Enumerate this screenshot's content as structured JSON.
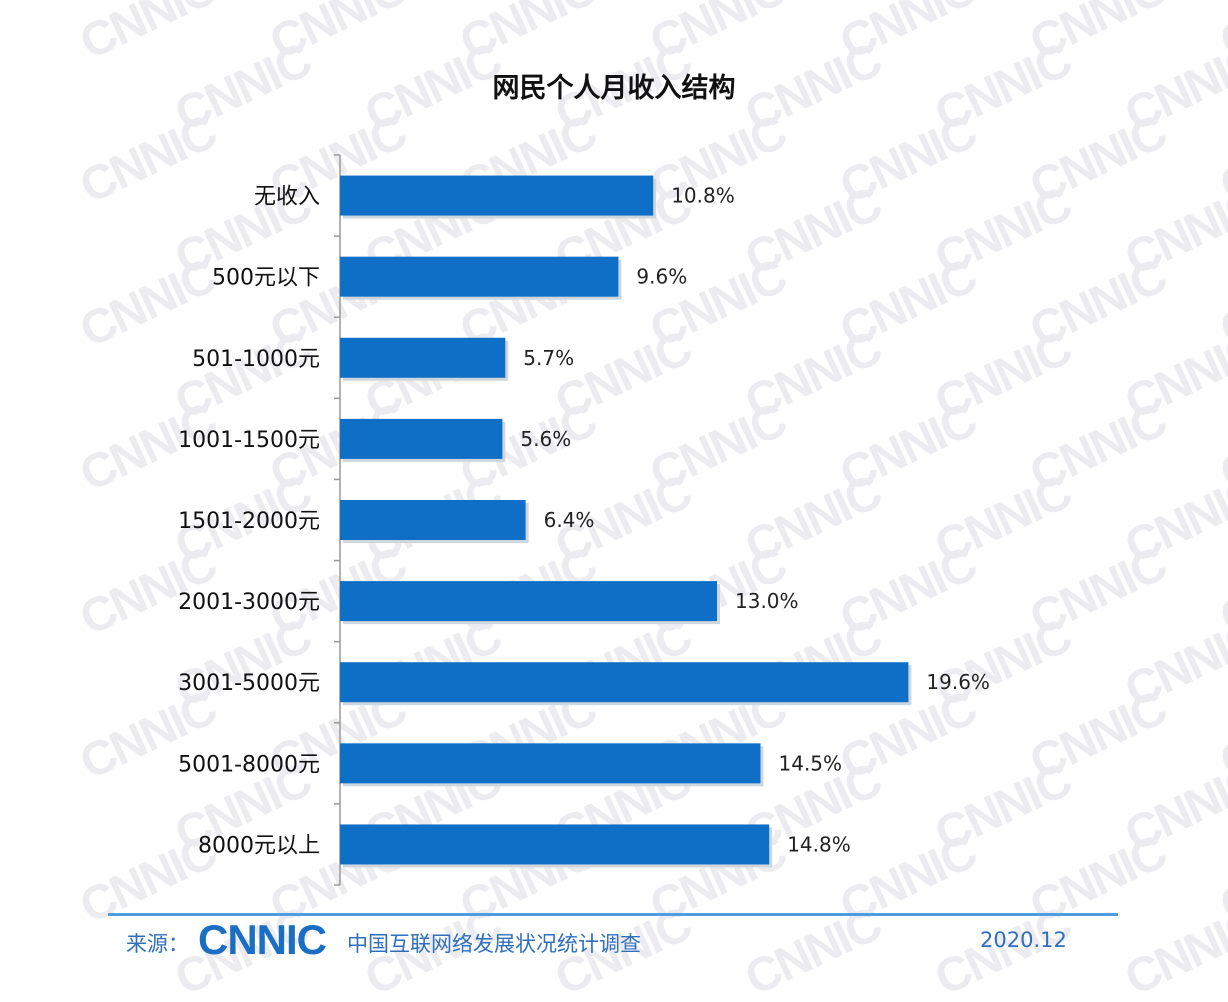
{
  "chart_data": {
    "type": "bar",
    "orientation": "horizontal",
    "title": "网民个人月收入结构",
    "categories": [
      "无收入",
      "500元以下",
      "501-1000元",
      "1001-1500元",
      "1501-2000元",
      "2001-3000元",
      "3001-5000元",
      "5001-8000元",
      "8000元以上"
    ],
    "values": [
      10.8,
      9.6,
      5.7,
      5.6,
      6.4,
      13.0,
      19.6,
      14.5,
      14.8
    ],
    "value_labels": [
      "10.8%",
      "9.6%",
      "5.7%",
      "5.6%",
      "6.4%",
      "13.0%",
      "19.6%",
      "14.5%",
      "14.8%"
    ],
    "xlim": [
      0,
      20
    ],
    "grid": false,
    "colors": {
      "bar": "#0f6fc6",
      "bar_shadow": "#cfd6dd",
      "axis": "#999999"
    }
  },
  "footer": {
    "source_label": "来源：",
    "logo_text": "CNNIC",
    "logo_subtitle": "中国互联网络发展状况统计调查",
    "date": "2020.12",
    "accent_color": "#2f6fbd"
  },
  "watermark_text": "CNNIC"
}
